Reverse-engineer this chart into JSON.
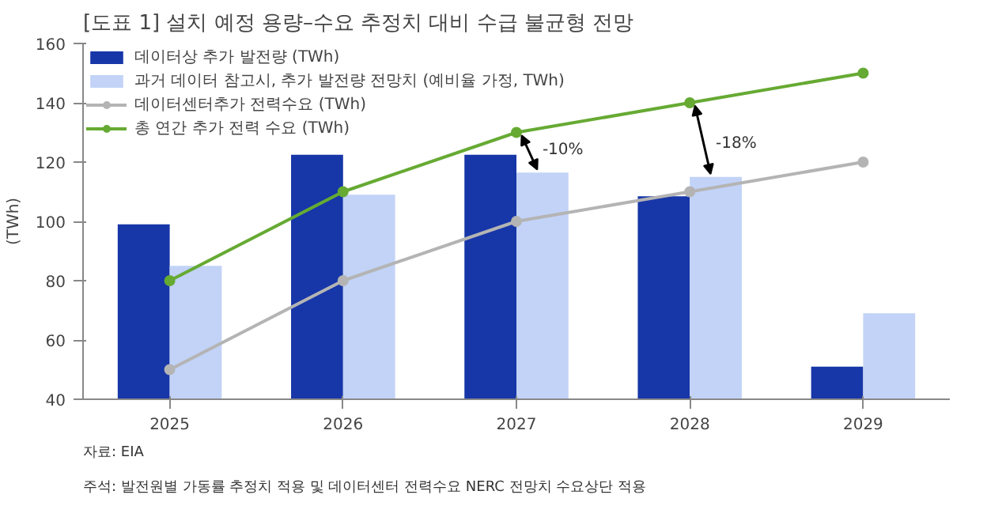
{
  "chart_data": {
    "type": "bar",
    "title": "[도표 1] 설치 예정 용량–수요 추정치 대비 수급 불균형 전망",
    "ylabel": "(TWh)",
    "categories": [
      "2025",
      "2026",
      "2027",
      "2028",
      "2029"
    ],
    "series": [
      {
        "name": "데이터상 추가 발전량 (TWh)",
        "color": "#1736a8",
        "values": [
          99,
          122.5,
          122.5,
          108.5,
          51
        ]
      },
      {
        "name": "과거 데이터 참고시, 추가 발전량 전망치 (예비율 가정, TWh)",
        "color": "#c2d3f7",
        "values": [
          85,
          109,
          116.5,
          115,
          69
        ]
      },
      {
        "name": "데이터센터추가 전력수요 (TWh)",
        "type": "line",
        "color": "#b4b4b4",
        "values": [
          50,
          80,
          100,
          110,
          120
        ]
      },
      {
        "name": "총 연간 추가 전력 수요 (TWh)",
        "type": "line",
        "color": "#66aa33",
        "values": [
          80,
          110,
          130,
          140,
          150
        ]
      }
    ],
    "ylim": [
      40,
      160
    ],
    "yticks": [
      40,
      60,
      80,
      100,
      120,
      140,
      160
    ],
    "grid": false,
    "legend": "top left",
    "marker": "circle",
    "annotations": [
      {
        "text": "-10%",
        "x": "2027",
        "y": 116.5
      },
      {
        "text": "-18%",
        "x": "2028",
        "y": 115
      },
      "자료: EIA",
      "주석: 발전원별 가동률 추정치 적용 및 데이터센터 전력수요 NERC 전망치 수요상단 적용"
    ]
  }
}
